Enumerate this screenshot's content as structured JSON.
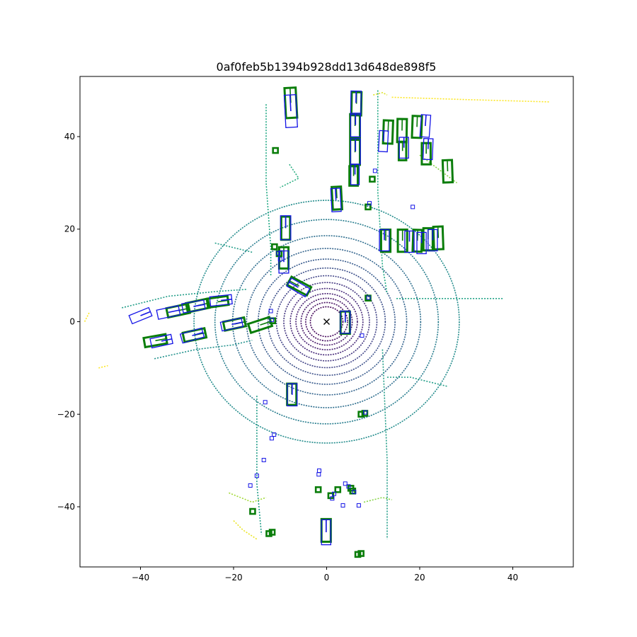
{
  "chart_data": {
    "type": "scatter",
    "title": "0af0feb5b1394b928dd13d648de898f5",
    "xlim": [
      -53,
      53
    ],
    "ylim": [
      -53,
      53
    ],
    "x_ticks": [
      -40,
      -20,
      0,
      20,
      40
    ],
    "y_ticks": [
      -40,
      -20,
      0,
      20,
      40
    ],
    "x_tick_labels": [
      "−40",
      "−20",
      "0",
      "20",
      "40"
    ],
    "y_tick_labels": [
      "−40",
      "−20",
      "0",
      "20",
      "40"
    ],
    "grid": false,
    "ego_marker": {
      "symbol": "x",
      "x": 0,
      "y": 0
    },
    "colors": {
      "ground_truth": "#0a7d0a",
      "prediction": "#1414e6",
      "colormap": "viridis"
    },
    "lidar_rings": [
      {
        "radius": 3.5,
        "level": 0.02
      },
      {
        "radius": 4.5,
        "level": 0.04
      },
      {
        "radius": 5.5,
        "level": 0.06
      },
      {
        "radius": 6.6,
        "level": 0.09
      },
      {
        "radius": 7.8,
        "level": 0.12
      },
      {
        "radius": 9.2,
        "level": 0.16
      },
      {
        "radius": 10.8,
        "level": 0.2
      },
      {
        "radius": 12.6,
        "level": 0.24
      },
      {
        "radius": 14.7,
        "level": 0.28
      },
      {
        "radius": 17.2,
        "level": 0.32
      },
      {
        "radius": 20.2,
        "level": 0.36
      },
      {
        "radius": 24.0,
        "level": 0.42
      },
      {
        "radius": 28.5,
        "level": 0.48
      }
    ],
    "lidar_segments": [
      {
        "points": [
          [
            -44,
            3
          ],
          [
            -34,
            5.5
          ],
          [
            -24,
            6.5
          ],
          [
            -17,
            7
          ]
        ],
        "level": 0.55
      },
      {
        "points": [
          [
            -37,
            -8
          ],
          [
            -28,
            -6
          ],
          [
            -20,
            -5
          ],
          [
            -16,
            -4
          ]
        ],
        "level": 0.5
      },
      {
        "points": [
          [
            -13,
            47
          ],
          [
            -13,
            30
          ],
          [
            -12,
            16
          ],
          [
            -12,
            10
          ]
        ],
        "level": 0.6
      },
      {
        "points": [
          [
            -15,
            -16
          ],
          [
            -15,
            -35
          ],
          [
            -14,
            -46
          ]
        ],
        "level": 0.55
      },
      {
        "points": [
          [
            11,
            50
          ],
          [
            11,
            28
          ],
          [
            12,
            12
          ],
          [
            13,
            6
          ]
        ],
        "level": 0.6
      },
      {
        "points": [
          [
            12,
            -6
          ],
          [
            13,
            -30
          ],
          [
            13,
            -47
          ]
        ],
        "level": 0.55
      },
      {
        "points": [
          [
            15,
            5
          ],
          [
            22,
            5
          ],
          [
            30,
            5
          ],
          [
            38,
            5
          ]
        ],
        "level": 0.58
      },
      {
        "points": [
          [
            13,
            -12
          ],
          [
            18,
            -12
          ],
          [
            26,
            -14
          ]
        ],
        "level": 0.55
      },
      {
        "points": [
          [
            14,
            48.5
          ],
          [
            30,
            48
          ],
          [
            48,
            47.5
          ]
        ],
        "level": 1.0
      },
      {
        "points": [
          [
            10,
            49
          ],
          [
            12,
            49.5
          ],
          [
            13,
            49
          ]
        ],
        "level": 0.95
      },
      {
        "points": [
          [
            20,
            36
          ],
          [
            24,
            33
          ],
          [
            28,
            30
          ]
        ],
        "level": 0.82
      },
      {
        "points": [
          [
            -8,
            34
          ],
          [
            -6,
            31
          ],
          [
            -10,
            29
          ]
        ],
        "level": 0.62
      },
      {
        "points": [
          [
            -21,
            -37
          ],
          [
            -16,
            -39
          ],
          [
            -13,
            -38
          ]
        ],
        "level": 0.86
      },
      {
        "points": [
          [
            8,
            -39
          ],
          [
            12,
            -38
          ],
          [
            14,
            -38.5
          ]
        ],
        "level": 0.82
      },
      {
        "points": [
          [
            -20,
            -43
          ],
          [
            -18,
            -45
          ],
          [
            -15,
            -47
          ]
        ],
        "level": 0.97
      },
      {
        "points": [
          [
            -52,
            0
          ],
          [
            -51,
            2
          ]
        ],
        "level": 1.0
      },
      {
        "points": [
          [
            -49,
            -10
          ],
          [
            -47,
            -9.5
          ]
        ],
        "level": 1.0
      },
      {
        "points": [
          [
            -24,
            17
          ],
          [
            -20,
            16
          ],
          [
            -16,
            15
          ]
        ],
        "level": 0.55
      }
    ],
    "ground_truth_boxes": [
      {
        "x": -7.7,
        "y": 47.3,
        "w": 2.4,
        "h": 6.5,
        "angle": -3
      },
      {
        "x": 6.4,
        "y": 47.1,
        "w": 2.1,
        "h": 5.0,
        "angle": 1
      },
      {
        "x": 6.1,
        "y": 42.3,
        "w": 2.1,
        "h": 5.1,
        "angle": 0
      },
      {
        "x": 13.2,
        "y": 41.0,
        "w": 2.0,
        "h": 5.0,
        "angle": 2
      },
      {
        "x": 16.2,
        "y": 41.3,
        "w": 2.0,
        "h": 5.0,
        "angle": 1
      },
      {
        "x": 19.4,
        "y": 42.1,
        "w": 2.0,
        "h": 4.7,
        "angle": 2
      },
      {
        "x": 6.1,
        "y": 36.6,
        "w": 2.1,
        "h": 5.4,
        "angle": 0
      },
      {
        "x": 16.3,
        "y": 36.9,
        "w": 1.6,
        "h": 4.0,
        "angle": 0
      },
      {
        "x": 21.4,
        "y": 36.3,
        "w": 1.9,
        "h": 4.6,
        "angle": 0
      },
      {
        "x": 26.0,
        "y": 32.5,
        "w": 2.0,
        "h": 4.8,
        "angle": -2
      },
      {
        "x": 5.8,
        "y": 31.5,
        "w": 1.8,
        "h": 4.2,
        "angle": 0
      },
      {
        "x": 2.2,
        "y": 26.7,
        "w": 2.0,
        "h": 4.9,
        "angle": -3
      },
      {
        "x": -8.8,
        "y": 20.2,
        "w": 1.9,
        "h": 5.0,
        "angle": 0
      },
      {
        "x": 12.7,
        "y": 17.5,
        "w": 2.0,
        "h": 4.8,
        "angle": 0
      },
      {
        "x": 16.3,
        "y": 17.5,
        "w": 2.0,
        "h": 4.8,
        "angle": 0
      },
      {
        "x": 19.5,
        "y": 17.5,
        "w": 1.9,
        "h": 4.7,
        "angle": 2
      },
      {
        "x": 21.8,
        "y": 17.8,
        "w": 2.0,
        "h": 4.8,
        "angle": 0
      },
      {
        "x": 24.0,
        "y": 18.1,
        "w": 2.0,
        "h": 4.9,
        "angle": -2
      },
      {
        "x": -9.2,
        "y": 13.8,
        "w": 2.0,
        "h": 4.6,
        "angle": 0
      },
      {
        "x": -5.9,
        "y": 7.7,
        "w": 2.0,
        "h": 4.8,
        "angle": -62
      },
      {
        "x": -23.4,
        "y": 4.3,
        "w": 1.9,
        "h": 4.5,
        "angle": 82
      },
      {
        "x": -27.7,
        "y": 3.5,
        "w": 2.0,
        "h": 4.8,
        "angle": 78
      },
      {
        "x": -31.9,
        "y": 2.4,
        "w": 2.0,
        "h": 4.8,
        "angle": 78
      },
      {
        "x": 4.0,
        "y": -0.2,
        "w": 2.0,
        "h": 4.8,
        "angle": 0
      },
      {
        "x": -19.8,
        "y": -0.5,
        "w": 1.9,
        "h": 4.6,
        "angle": 78
      },
      {
        "x": -14.3,
        "y": -0.7,
        "w": 2.0,
        "h": 4.8,
        "angle": 72
      },
      {
        "x": -28.4,
        "y": -2.9,
        "w": 2.0,
        "h": 4.8,
        "angle": 78
      },
      {
        "x": -36.8,
        "y": -4.1,
        "w": 2.0,
        "h": 4.8,
        "angle": 80
      },
      {
        "x": -7.5,
        "y": -15.7,
        "w": 2.0,
        "h": 4.6,
        "angle": 0
      },
      {
        "x": -0.1,
        "y": -45.1,
        "w": 2.0,
        "h": 4.9,
        "angle": 0
      }
    ],
    "ground_truth_small": [
      {
        "x": -11.0,
        "y": 37.0
      },
      {
        "x": 9.8,
        "y": 30.8
      },
      {
        "x": 8.9,
        "y": 24.8
      },
      {
        "x": -11.2,
        "y": 16.2
      },
      {
        "x": -10.2,
        "y": 14.7
      },
      {
        "x": 8.9,
        "y": 5.1
      },
      {
        "x": -11.6,
        "y": 0.2
      },
      {
        "x": 7.4,
        "y": -20.0
      },
      {
        "x": 8.2,
        "y": -19.8
      },
      {
        "x": -1.8,
        "y": -36.3
      },
      {
        "x": 2.4,
        "y": -36.3
      },
      {
        "x": 0.9,
        "y": -37.6
      },
      {
        "x": 5.2,
        "y": -36.0
      },
      {
        "x": 5.6,
        "y": -36.6
      },
      {
        "x": -15.9,
        "y": -41.0
      },
      {
        "x": -11.7,
        "y": -45.5
      },
      {
        "x": -12.4,
        "y": -45.8
      },
      {
        "x": 6.7,
        "y": -50.3
      },
      {
        "x": 7.4,
        "y": -50.1
      }
    ],
    "prediction_boxes": [
      {
        "x": -7.7,
        "y": 45.5,
        "w": 2.5,
        "h": 7.0,
        "angle": -3
      },
      {
        "x": 6.3,
        "y": 47.3,
        "w": 2.2,
        "h": 5.1,
        "angle": 1
      },
      {
        "x": 6.2,
        "y": 42.5,
        "w": 2.1,
        "h": 5.1,
        "angle": 0
      },
      {
        "x": 21.2,
        "y": 42.3,
        "w": 2.0,
        "h": 4.8,
        "angle": 4
      },
      {
        "x": 12.2,
        "y": 39.0,
        "w": 1.9,
        "h": 4.5,
        "angle": 3
      },
      {
        "x": 16.6,
        "y": 37.6,
        "w": 2.0,
        "h": 4.5,
        "angle": 0
      },
      {
        "x": 21.8,
        "y": 37.3,
        "w": 2.0,
        "h": 4.5,
        "angle": 2
      },
      {
        "x": 6.2,
        "y": 36.8,
        "w": 2.1,
        "h": 5.5,
        "angle": 0
      },
      {
        "x": 6.1,
        "y": 31.8,
        "w": 1.8,
        "h": 4.4,
        "angle": 0
      },
      {
        "x": 2.0,
        "y": 26.3,
        "w": 2.0,
        "h": 5.0,
        "angle": -3
      },
      {
        "x": -8.8,
        "y": 20.3,
        "w": 2.2,
        "h": 5.2,
        "angle": 0
      },
      {
        "x": 12.4,
        "y": 17.6,
        "w": 2.1,
        "h": 4.6,
        "angle": 0
      },
      {
        "x": 17.8,
        "y": 17.3,
        "w": 2.0,
        "h": 4.6,
        "angle": 0
      },
      {
        "x": 20.4,
        "y": 17.0,
        "w": 2.0,
        "h": 4.6,
        "angle": 0
      },
      {
        "x": 22.8,
        "y": 17.6,
        "w": 2.0,
        "h": 4.6,
        "angle": 0
      },
      {
        "x": -9.2,
        "y": 12.9,
        "w": 2.1,
        "h": 4.8,
        "angle": 0
      },
      {
        "x": -6.1,
        "y": 7.4,
        "w": 2.0,
        "h": 4.6,
        "angle": -60
      },
      {
        "x": -22.7,
        "y": 4.6,
        "w": 2.0,
        "h": 4.7,
        "angle": 84
      },
      {
        "x": -28.6,
        "y": 3.3,
        "w": 2.0,
        "h": 4.8,
        "angle": 80
      },
      {
        "x": -34.0,
        "y": 2.0,
        "w": 2.0,
        "h": 4.8,
        "angle": 78
      },
      {
        "x": 4.0,
        "y": -0.1,
        "w": 2.1,
        "h": 4.8,
        "angle": 0
      },
      {
        "x": -20.4,
        "y": -0.6,
        "w": 1.9,
        "h": 4.6,
        "angle": 78
      },
      {
        "x": -40.0,
        "y": 1.3,
        "w": 1.9,
        "h": 4.6,
        "angle": 68
      },
      {
        "x": -28.9,
        "y": -3.0,
        "w": 2.0,
        "h": 4.8,
        "angle": 74
      },
      {
        "x": -35.5,
        "y": -4.2,
        "w": 2.0,
        "h": 4.6,
        "angle": 78
      },
      {
        "x": -7.4,
        "y": -15.8,
        "w": 2.1,
        "h": 4.8,
        "angle": 0
      },
      {
        "x": -0.1,
        "y": -45.5,
        "w": 2.0,
        "h": 5.4,
        "angle": 0
      }
    ],
    "prediction_small": [
      {
        "x": 10.4,
        "y": 32.6
      },
      {
        "x": 9.2,
        "y": 25.6
      },
      {
        "x": 18.5,
        "y": 24.8
      },
      {
        "x": -10.4,
        "y": 14.8
      },
      {
        "x": -10.0,
        "y": 13.5
      },
      {
        "x": -12.0,
        "y": 2.3
      },
      {
        "x": 9.0,
        "y": 5.2
      },
      {
        "x": -11.8,
        "y": 0.4
      },
      {
        "x": 7.6,
        "y": -3.0
      },
      {
        "x": 8.3,
        "y": -19.6
      },
      {
        "x": -13.2,
        "y": -17.4
      },
      {
        "x": -11.3,
        "y": -24.4
      },
      {
        "x": -11.8,
        "y": -25.2
      },
      {
        "x": -13.5,
        "y": -29.9
      },
      {
        "x": -1.6,
        "y": -32.2
      },
      {
        "x": -1.7,
        "y": -33.0
      },
      {
        "x": -15.0,
        "y": -33.3
      },
      {
        "x": 4.0,
        "y": -35.0
      },
      {
        "x": 4.7,
        "y": -35.6
      },
      {
        "x": 1.6,
        "y": -37.2
      },
      {
        "x": 1.2,
        "y": -38.2
      },
      {
        "x": 3.5,
        "y": -39.7
      },
      {
        "x": 6.9,
        "y": -39.7
      },
      {
        "x": 5.9,
        "y": -36.8
      },
      {
        "x": -16.4,
        "y": -35.4
      }
    ]
  }
}
